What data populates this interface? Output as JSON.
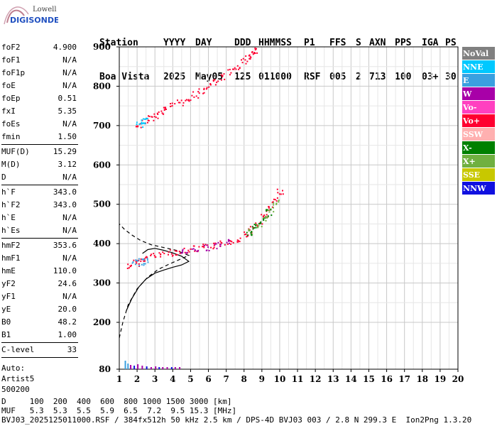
{
  "logo": {
    "line1": "Lowell",
    "line2": "DIGISONDE"
  },
  "header": {
    "row1": [
      "Station",
      "YYYY",
      "DAY",
      "DDD",
      "HHMMSS",
      "P1",
      "FFS",
      "S",
      "AXN",
      "PPS",
      "IGA",
      "PS"
    ],
    "row2": [
      "Boa Vista",
      "2025",
      "May05",
      "125",
      "011000",
      "RSF",
      "005",
      "2",
      "713",
      "100",
      "03+",
      "30"
    ]
  },
  "params": {
    "group1": [
      {
        "label": "foF2",
        "value": "4.900"
      },
      {
        "label": "foF1",
        "value": "N/A"
      },
      {
        "label": "foF1p",
        "value": "N/A"
      },
      {
        "label": "foE",
        "value": "N/A"
      },
      {
        "label": "foEp",
        "value": "0.51"
      },
      {
        "label": "fxI",
        "value": "5.35"
      },
      {
        "label": "foEs",
        "value": "N/A"
      },
      {
        "label": "fmin",
        "value": "1.50"
      }
    ],
    "group2": [
      {
        "label": "MUF(D)",
        "value": "15.29"
      },
      {
        "label": "M(D)",
        "value": "3.12"
      },
      {
        "label": "D",
        "value": "N/A"
      }
    ],
    "group3": [
      {
        "label": "h`F",
        "value": "343.0"
      },
      {
        "label": "h`F2",
        "value": "343.0"
      },
      {
        "label": "h`E",
        "value": "N/A"
      },
      {
        "label": "h`Es",
        "value": "N/A"
      }
    ],
    "group4": [
      {
        "label": "hmF2",
        "value": "353.6"
      },
      {
        "label": "hmF1",
        "value": "N/A"
      },
      {
        "label": "hmE",
        "value": "110.0"
      },
      {
        "label": "yF2",
        "value": "24.6"
      },
      {
        "label": "yF1",
        "value": "N/A"
      },
      {
        "label": "yE",
        "value": "20.0"
      },
      {
        "label": "B0",
        "value": "48.2"
      },
      {
        "label": "B1",
        "value": "1.00"
      }
    ],
    "group5": [
      {
        "label": "C-level",
        "value": "33"
      }
    ],
    "auto_label": "Auto:",
    "auto_system": "Artist5",
    "auto_version": "500200"
  },
  "legend": [
    {
      "label": "NoVal",
      "color": "#808080"
    },
    {
      "label": "NNE",
      "color": "#00c8ff"
    },
    {
      "label": "E",
      "color": "#3aa0e0"
    },
    {
      "label": "W",
      "color": "#a800a8"
    },
    {
      "label": "Vo-",
      "color": "#ff40c0"
    },
    {
      "label": "Vo+",
      "color": "#ff0030"
    },
    {
      "label": "SSW",
      "color": "#ffb0b0"
    },
    {
      "label": "X-",
      "color": "#008000"
    },
    {
      "label": "X+",
      "color": "#70b040"
    },
    {
      "label": "SSE",
      "color": "#c8c800"
    },
    {
      "label": "NNW",
      "color": "#1010e0"
    }
  ],
  "chart_data": {
    "type": "scatter",
    "x_ticks": [
      "1",
      "2",
      "3",
      "4",
      "5",
      "6",
      "7",
      "8",
      "9",
      "10",
      "11",
      "12",
      "13",
      "14",
      "15",
      "16",
      "17",
      "18",
      "19",
      "20"
    ],
    "y_ticks": [
      "80",
      "200",
      "300",
      "400",
      "500",
      "600",
      "700",
      "800",
      "900"
    ],
    "xlim": [
      1,
      20
    ],
    "ylim": [
      80,
      900
    ],
    "grid": true,
    "series": [
      {
        "name": "Vo+",
        "color": "#ff0030",
        "x": [
          1.6,
          1.9,
          2.2,
          2.5,
          2.9,
          3.3,
          3.8,
          4.3,
          4.8,
          5.3,
          5.8,
          6.3,
          6.8,
          7.2,
          7.6,
          8.0,
          8.4,
          8.8,
          9.1,
          9.4,
          9.7,
          10.0
        ],
        "y": [
          345,
          352,
          358,
          364,
          370,
          374,
          378,
          381,
          384,
          388,
          392,
          396,
          401,
          407,
          414,
          424,
          437,
          452,
          470,
          488,
          510,
          535
        ]
      },
      {
        "name": "W",
        "color": "#a800a8",
        "x": [
          4.6,
          5.2,
          5.9,
          6.5,
          7.1
        ],
        "y": [
          381,
          386,
          391,
          397,
          405
        ]
      },
      {
        "name": "E",
        "color": "#3aa0e0",
        "x": [
          1.9,
          2.2,
          2.5
        ],
        "y": [
          352,
          355,
          358
        ]
      },
      {
        "name": "X+",
        "color": "#70b040",
        "x": [
          8.4,
          8.8,
          9.2,
          9.5,
          9.8
        ],
        "y": [
          432,
          448,
          466,
          486,
          505
        ]
      },
      {
        "name": "X-",
        "color": "#008000",
        "x": [
          8.2,
          8.6,
          9.0,
          9.4
        ],
        "y": [
          428,
          444,
          460,
          480
        ]
      },
      {
        "name": "Vo+",
        "color": "#ff0030",
        "x": [
          2.1,
          2.4,
          2.7,
          3.0,
          3.3,
          3.6,
          4.0,
          4.4,
          4.8,
          5.2,
          5.6,
          6.0,
          6.4,
          6.8,
          7.2,
          7.6,
          8.0,
          8.2,
          8.4,
          8.6
        ],
        "y": [
          700,
          712,
          721,
          728,
          735,
          742,
          752,
          760,
          770,
          780,
          790,
          800,
          812,
          825,
          838,
          852,
          866,
          875,
          884,
          893
        ]
      },
      {
        "name": "NNE",
        "color": "#00c8ff",
        "x": [
          2.1,
          2.3,
          2.5
        ],
        "y": [
          702,
          708,
          714
        ]
      }
    ],
    "curves": {
      "profile_solid": {
        "x": [
          1.4,
          1.7,
          2.1,
          2.5,
          3.0,
          3.5,
          4.0,
          4.5,
          4.9,
          4.5,
          3.9,
          3.4,
          3.0,
          2.6,
          2.3
        ],
        "y": [
          230,
          260,
          290,
          310,
          325,
          333,
          340,
          346,
          355,
          368,
          378,
          384,
          388,
          385,
          375
        ]
      },
      "profile_dashed": {
        "x": [
          1.0,
          1.2,
          1.5,
          2.0,
          2.6,
          3.2,
          3.8,
          4.4,
          4.9,
          4.2,
          3.5,
          2.8,
          2.2,
          1.7,
          1.3,
          1.0
        ],
        "y": [
          160,
          200,
          245,
          285,
          315,
          335,
          348,
          360,
          370,
          383,
          390,
          397,
          408,
          422,
          436,
          450
        ]
      }
    },
    "bottom_markers": {
      "x": [
        1.3,
        1.45,
        1.6,
        1.8,
        2.0,
        2.25,
        2.5,
        2.75,
        3.0,
        3.2,
        3.4,
        3.65,
        3.9,
        4.1,
        4.35
      ],
      "h": [
        12,
        8,
        6,
        5,
        7,
        5,
        4,
        3,
        4,
        3,
        3,
        3,
        3,
        3,
        3
      ]
    }
  },
  "footer": {
    "line1": "D     100  200  400  600  800 1000 1500 3000 [km]",
    "line2": "MUF   5.3  5.3  5.5  5.9  6.5  7.2  9.5 15.3 [MHz]",
    "line3": "BVJ03_2025125011000.RSF / 384fx512h 50 kHz 2.5 km / DPS-4D BVJ03 003 / 2.8 N 299.3 E  Ion2Png 1.3.20"
  }
}
